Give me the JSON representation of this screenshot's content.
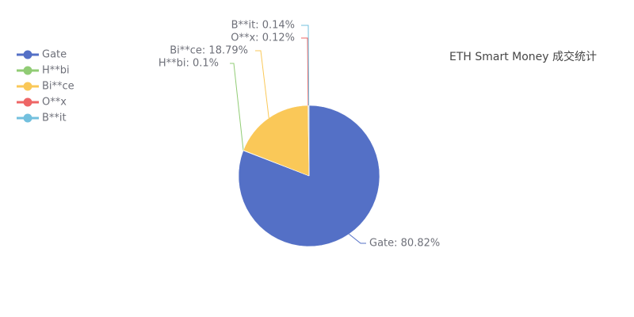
{
  "chart_data": {
    "type": "pie",
    "title": "ETH Smart Money 成交统计",
    "categories": [
      "Gate",
      "H**bi",
      "Bi**ce",
      "O**x",
      "B**it"
    ],
    "values": [
      80.82,
      0.1,
      18.79,
      0.12,
      0.14
    ],
    "value_labels": [
      "Gate: 80.82%",
      "H**bi: 0.1%",
      "Bi**ce: 18.79%",
      "O**x: 0.12%",
      "B**it: 0.14%"
    ],
    "colors": [
      "#5470c6",
      "#91cc75",
      "#fac858",
      "#ee6666",
      "#73c0de"
    ],
    "legend": "top-left"
  }
}
